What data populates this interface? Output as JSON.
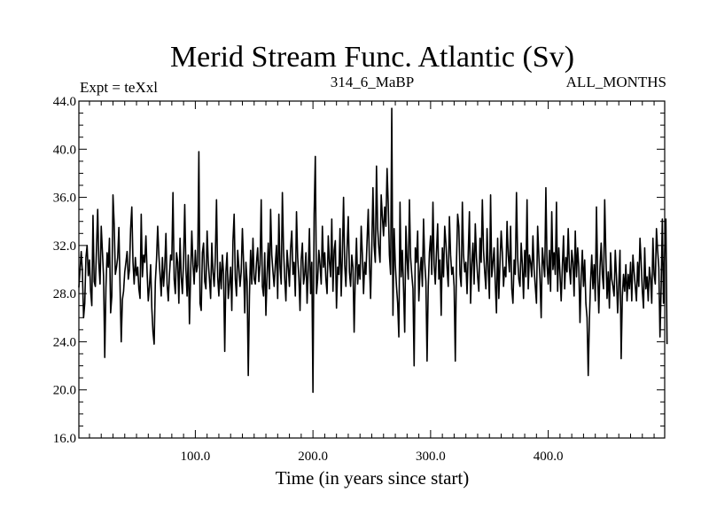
{
  "chart_data": {
    "type": "line",
    "title": "Merid Stream Func. Atlantic (Sv)",
    "subtitle_left": "Expt = teXxl",
    "subtitle_center": "314_6_MaBP",
    "subtitle_right": "ALL_MONTHS",
    "xlabel": "Time (in years since start)",
    "ylabel": "",
    "xlim": [
      1,
      499
    ],
    "ylim": [
      16.0,
      44.0
    ],
    "x_ticks": [
      100,
      200,
      300,
      400
    ],
    "x_tick_labels": [
      "100.0",
      "200.0",
      "300.0",
      "400.0"
    ],
    "y_ticks": [
      16,
      20,
      24,
      28,
      32,
      36,
      40,
      44
    ],
    "y_tick_labels": [
      "16.0",
      "20.0",
      "24.0",
      "28.0",
      "32.0",
      "36.0",
      "40.0",
      "44.0"
    ],
    "grid": false,
    "line_color": "#000000",
    "series": [
      {
        "name": "Merid Stream Func. Atlantic",
        "x_start": 1,
        "x_step": 1,
        "values": [
          28.5,
          30.0,
          31.5,
          29.8,
          26.0,
          27.2,
          31.0,
          32.0,
          29.5,
          30.8,
          28.2,
          27.0,
          34.5,
          29.0,
          28.6,
          31.8,
          35.0,
          30.5,
          28.8,
          33.6,
          31.5,
          29.4,
          22.7,
          28.5,
          31.4,
          30.2,
          32.6,
          26.4,
          27.8,
          36.2,
          33.8,
          29.6,
          30.2,
          31.0,
          33.5,
          28.6,
          24.0,
          27.5,
          28.2,
          29.8,
          30.6,
          31.5,
          29.2,
          30.0,
          33.4,
          35.2,
          30.6,
          28.8,
          31.0,
          29.5,
          30.2,
          28.4,
          27.6,
          34.6,
          29.4,
          31.2,
          30.6,
          32.8,
          29.8,
          27.4,
          28.6,
          30.4,
          26.8,
          24.8,
          23.8,
          29.0,
          30.8,
          33.6,
          31.2,
          29.6,
          27.8,
          31.0,
          28.6,
          30.2,
          33.0,
          28.8,
          27.4,
          29.6,
          31.2,
          30.8,
          36.4,
          29.2,
          28.0,
          31.4,
          30.6,
          27.2,
          32.6,
          29.4,
          28.0,
          30.8,
          35.4,
          30.0,
          27.8,
          31.2,
          25.5,
          29.6,
          33.2,
          30.4,
          28.8,
          31.6,
          29.8,
          30.4,
          39.8,
          27.2,
          26.6,
          31.4,
          32.2,
          29.0,
          28.4,
          33.2,
          30.6,
          29.2,
          27.6,
          32.2,
          29.8,
          28.6,
          31.0,
          35.8,
          29.4,
          27.8,
          30.6,
          28.4,
          31.2,
          29.6,
          23.2,
          29.8,
          31.4,
          27.6,
          28.8,
          30.2,
          26.6,
          32.4,
          34.6,
          29.2,
          27.8,
          31.6,
          30.2,
          28.6,
          29.8,
          33.4,
          30.6,
          26.4,
          30.6,
          29.0,
          21.2,
          27.8,
          31.6,
          28.8,
          32.6,
          29.2,
          28.8,
          30.6,
          31.8,
          29.0,
          30.4,
          35.8,
          28.6,
          27.8,
          31.4,
          26.2,
          29.6,
          32.2,
          28.4,
          35.0,
          31.2,
          29.8,
          28.6,
          30.4,
          32.0,
          27.6,
          34.6,
          30.2,
          28.8,
          36.4,
          31.6,
          29.2,
          27.4,
          31.6,
          30.2,
          28.6,
          31.8,
          33.2,
          29.6,
          30.6,
          27.8,
          34.8,
          31.0,
          29.4,
          26.6,
          30.8,
          32.2,
          28.8,
          29.6,
          31.4,
          27.2,
          30.0,
          33.4,
          28.0,
          30.6,
          19.8,
          34.6,
          39.4,
          28.0,
          29.2,
          31.6,
          30.4,
          28.8,
          33.6,
          30.2,
          31.4,
          29.2,
          28.0,
          32.8,
          30.6,
          29.4,
          34.2,
          28.2,
          31.6,
          32.4,
          26.8,
          30.2,
          29.6,
          33.4,
          27.8,
          31.2,
          36.0,
          30.4,
          28.6,
          31.8,
          34.4,
          29.8,
          28.6,
          31.2,
          30.2,
          24.8,
          29.6,
          32.6,
          28.8,
          30.4,
          29.2,
          33.6,
          31.2,
          28.0,
          30.6,
          29.6,
          32.4,
          35.0,
          30.6,
          27.6,
          31.8,
          36.8,
          32.0,
          30.6,
          38.6,
          33.4,
          31.8,
          30.6,
          36.2,
          34.4,
          32.8,
          35.2,
          33.6,
          38.4,
          35.4,
          31.2,
          29.6,
          43.4,
          26.2,
          33.4,
          30.4,
          28.6,
          27.2,
          24.4,
          35.6,
          29.4,
          31.6,
          28.4,
          24.8,
          33.6,
          30.8,
          29.2,
          35.8,
          31.0,
          29.6,
          28.4,
          22.0,
          31.8,
          30.6,
          33.2,
          27.4,
          29.8,
          31.0,
          28.6,
          34.2,
          30.6,
          29.0,
          22.4,
          28.6,
          31.4,
          32.8,
          29.6,
          35.6,
          30.4,
          28.8,
          31.4,
          33.8,
          29.2,
          30.8,
          26.2,
          31.8,
          29.4,
          33.6,
          32.2,
          30.2,
          28.6,
          34.4,
          31.2,
          29.6,
          30.2,
          28.6,
          22.4,
          30.6,
          34.6,
          33.6,
          29.6,
          28.6,
          35.6,
          31.2,
          29.8,
          30.6,
          28.0,
          31.4,
          34.8,
          27.2,
          30.4,
          32.2,
          28.8,
          33.8,
          31.0,
          29.4,
          28.2,
          32.6,
          30.6,
          35.8,
          31.6,
          29.8,
          28.4,
          33.4,
          30.0,
          27.6,
          36.2,
          29.4,
          30.6,
          31.8,
          28.8,
          26.4,
          32.6,
          27.6,
          30.6,
          33.2,
          31.4,
          28.6,
          30.2,
          29.4,
          34.0,
          31.2,
          29.8,
          33.6,
          28.4,
          27.2,
          30.8,
          29.6,
          36.4,
          31.0,
          29.2,
          28.6,
          32.2,
          30.4,
          27.6,
          31.6,
          29.4,
          35.8,
          28.4,
          31.2,
          30.6,
          29.4,
          32.8,
          30.0,
          28.6,
          27.2,
          33.6,
          31.2,
          29.2,
          26.0,
          31.8,
          30.6,
          29.4,
          36.8,
          30.4,
          28.8,
          31.6,
          28.2,
          34.8,
          30.0,
          31.4,
          29.6,
          35.6,
          28.2,
          31.8,
          29.6,
          27.4,
          30.2,
          32.8,
          28.4,
          31.0,
          29.8,
          33.4,
          30.2,
          28.8,
          31.6,
          30.6,
          27.8,
          33.2,
          29.4,
          31.8,
          30.2,
          25.6,
          29.4,
          31.6,
          28.6,
          30.8,
          27.2,
          26.0,
          21.2,
          25.8,
          29.0,
          31.2,
          28.4,
          30.4,
          27.4,
          35.2,
          29.6,
          26.4,
          30.2,
          32.2,
          29.6,
          28.4,
          35.8,
          31.2,
          27.6,
          29.8,
          26.8,
          31.4,
          29.2,
          28.6,
          27.8,
          31.6,
          29.4,
          26.4,
          28.8,
          31.6,
          22.6,
          27.8,
          29.6,
          28.2,
          30.4,
          27.4,
          29.6,
          28.4,
          30.6,
          27.4,
          31.2,
          29.8,
          28.6,
          27.4,
          30.6,
          28.6,
          32.6,
          30.6,
          28.2,
          26.8,
          31.8,
          28.4,
          29.4,
          27.4,
          30.2,
          29.2,
          27.2,
          32.6,
          29.6,
          28.8,
          33.4,
          31.6,
          30.2,
          24.4,
          28.6,
          34.2,
          27.2,
          31.6,
          34.2,
          23.8
        ]
      }
    ]
  }
}
